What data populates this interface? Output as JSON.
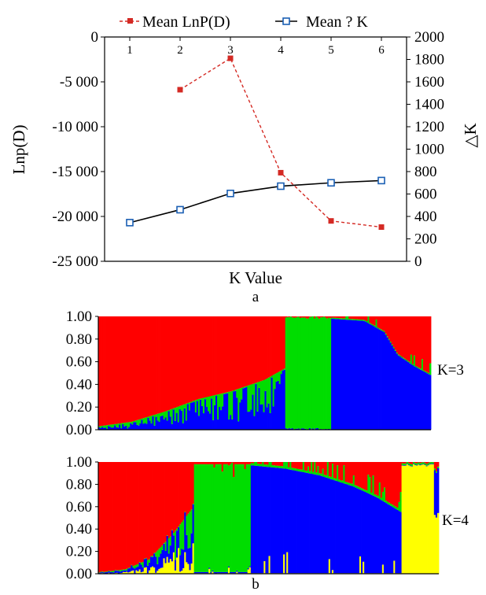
{
  "chart_data": [
    {
      "type": "line",
      "panel_label": "a",
      "xlabel": "K Value",
      "ylabel_left": "Lnp(D)",
      "ylabel_right": "△K",
      "x": [
        1,
        2,
        3,
        4,
        5,
        6
      ],
      "x_tick_labels": [
        "1",
        "2",
        "3",
        "4",
        "5",
        "6"
      ],
      "ylim_left": [
        -25000,
        0
      ],
      "y_ticks_left": [
        "0",
        "-5 000",
        "-10 000",
        "-15 000",
        "-20 000",
        "-25 000"
      ],
      "ylim_right": [
        0,
        2000
      ],
      "y_ticks_right": [
        "2000",
        "1800",
        "1600",
        "1400",
        "1200",
        "1000",
        "800",
        "600",
        "400",
        "200",
        "0"
      ],
      "legend_position": "top",
      "series": [
        {
          "name": "Mean LnP(D)",
          "axis": "right",
          "color": "#d42a24",
          "line_style": "dashed",
          "marker": "filled-square",
          "x": [
            2,
            3,
            4,
            5,
            6
          ],
          "values": [
            1530,
            1810,
            790,
            360,
            305
          ]
        },
        {
          "name": "Mean ? K",
          "axis": "right",
          "color": "#000000",
          "marker_color": "#1a5fb4",
          "line_style": "solid",
          "marker": "open-square",
          "x": [
            1,
            2,
            3,
            4,
            5,
            6
          ],
          "values": [
            345,
            460,
            605,
            670,
            700,
            720
          ]
        }
      ]
    },
    {
      "type": "bar",
      "stacked": true,
      "panel_label": "b",
      "label": "K=3",
      "ylim": [
        0,
        1
      ],
      "y_ticks": [
        "1.00",
        "0.80",
        "0.60",
        "0.40",
        "0.20",
        "0.00"
      ],
      "cluster_colors": [
        "#ff0000",
        "#00dd00",
        "#0000ff"
      ],
      "blocks": [
        {
          "x_range": [
            0,
            0.56
          ],
          "profile": [
            [
              0,
              0.02
            ],
            [
              0.1,
              0.06
            ],
            [
              0.2,
              0.15
            ],
            [
              0.3,
              0.26
            ],
            [
              0.4,
              0.33
            ],
            [
              0.5,
              0.43
            ],
            [
              0.56,
              0.53
            ]
          ]
        },
        {
          "x_range": [
            0.56,
            0.7
          ],
          "level": 0.99,
          "dominant": 2
        },
        {
          "x_range": [
            0.7,
            1.0
          ],
          "profile": [
            [
              0.7,
              0.98
            ],
            [
              0.8,
              0.96
            ],
            [
              0.86,
              0.86
            ],
            [
              0.9,
              0.66
            ],
            [
              0.95,
              0.56
            ],
            [
              1.0,
              0.48
            ]
          ]
        }
      ]
    },
    {
      "type": "bar",
      "stacked": true,
      "label": "K=4",
      "ylim": [
        0,
        1
      ],
      "y_ticks": [
        "1.00",
        "0.80",
        "0.60",
        "0.40",
        "0.20",
        "0.00"
      ],
      "cluster_colors": [
        "#ff0000",
        "#00dd00",
        "#0000ff",
        "#ffff00"
      ],
      "blocks": [
        {
          "x_range": [
            0,
            0.28
          ],
          "profile": [
            [
              0,
              0.01
            ],
            [
              0.08,
              0.04
            ],
            [
              0.15,
              0.13
            ],
            [
              0.22,
              0.36
            ],
            [
              0.28,
              0.6
            ]
          ]
        },
        {
          "x_range": [
            0.28,
            0.45
          ],
          "level": 0.98,
          "dominant": 2
        },
        {
          "x_range": [
            0.45,
            0.89
          ],
          "profile": [
            [
              0.45,
              0.97
            ],
            [
              0.55,
              0.94
            ],
            [
              0.65,
              0.88
            ],
            [
              0.75,
              0.78
            ],
            [
              0.82,
              0.68
            ],
            [
              0.89,
              0.55
            ]
          ]
        },
        {
          "x_range": [
            0.89,
            1.0
          ],
          "level": 0.97,
          "dominant": 4
        }
      ]
    }
  ]
}
